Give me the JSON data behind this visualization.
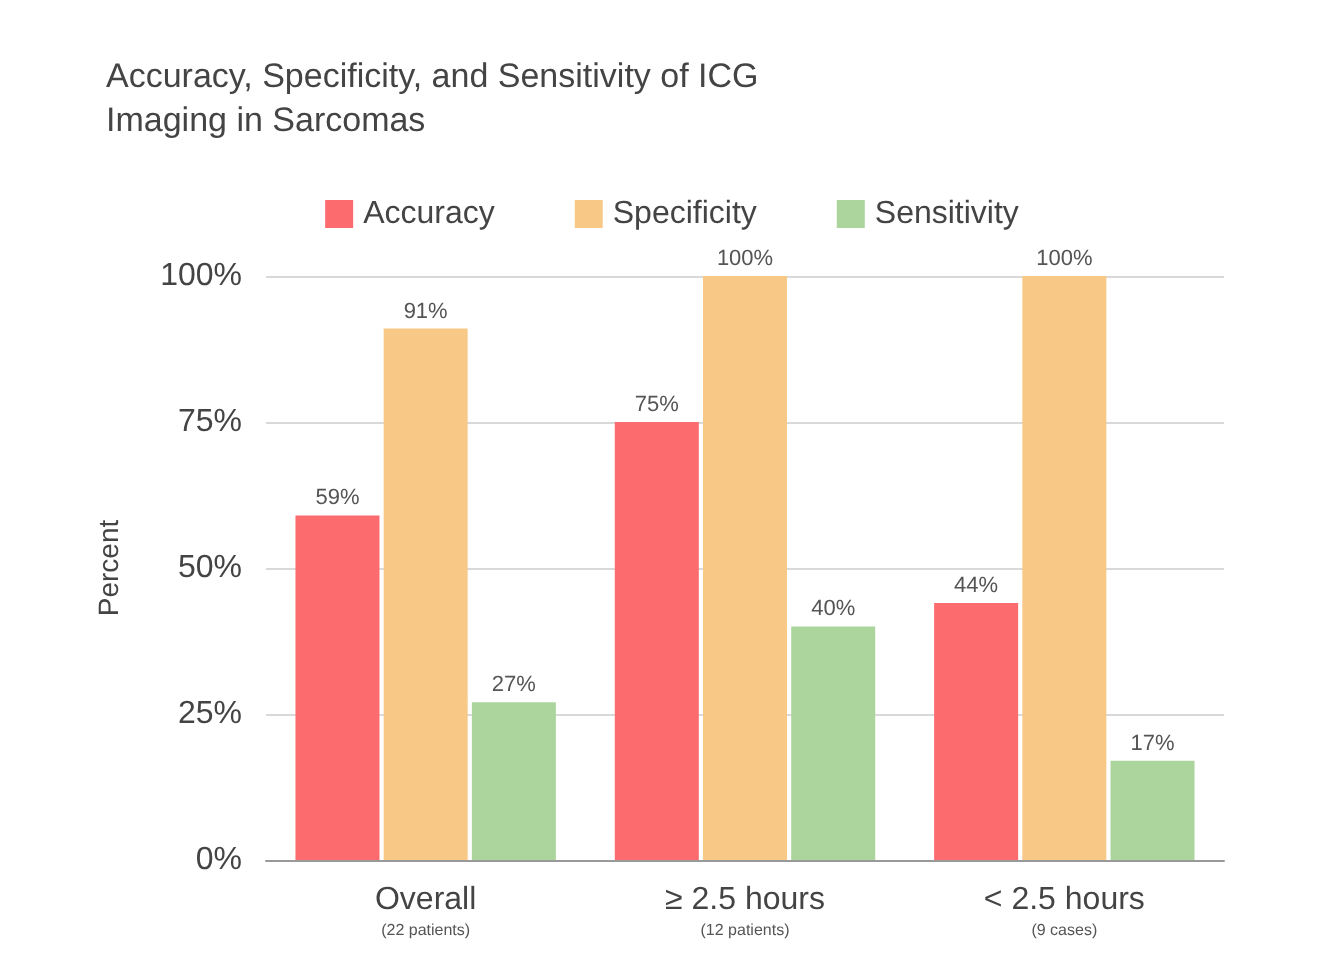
{
  "chart_data": {
    "type": "bar",
    "title": "Accuracy, Specificity, and Sensitivity of ICG\nImaging in Sarcomas",
    "ylabel": "Percent",
    "categories": [
      "Overall\n(22 patients)",
      "≥ 2.5 hours\n(12 patients)",
      "< 2.5 hours\n(9 cases)"
    ],
    "series": [
      {
        "name": "Accuracy",
        "color": "#fc6b6e",
        "values": [
          59,
          75,
          44
        ],
        "value_labels": [
          "59%",
          "75%",
          "44%"
        ]
      },
      {
        "name": "Specificity",
        "color": "#f8c886",
        "values": [
          91,
          100,
          100
        ],
        "value_labels": [
          "91%",
          "100%",
          "100%"
        ]
      },
      {
        "name": "Sensitivity",
        "color": "#abd59c",
        "values": [
          27,
          40,
          17
        ],
        "value_labels": [
          "27%",
          "40%",
          "17%"
        ]
      }
    ],
    "ylim": [
      0,
      100
    ],
    "yticks": [
      {
        "value": 0,
        "label": "0%"
      },
      {
        "value": 25,
        "label": "25%"
      },
      {
        "value": 50,
        "label": "50%"
      },
      {
        "value": 75,
        "label": "75%"
      },
      {
        "value": 100,
        "label": "100%"
      }
    ],
    "grid": "y",
    "legend": "top"
  }
}
